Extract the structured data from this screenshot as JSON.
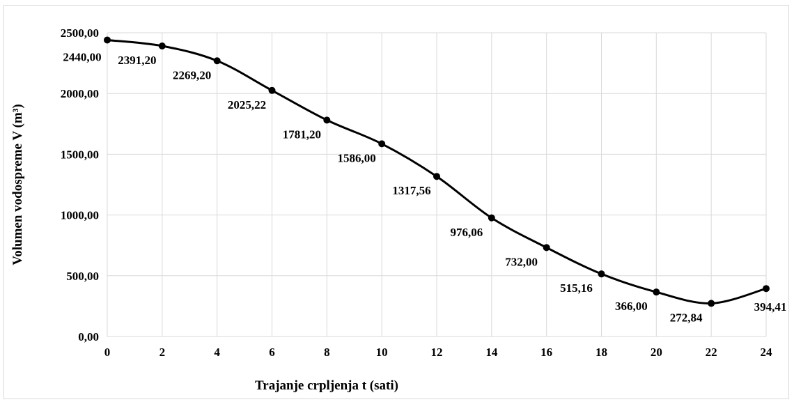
{
  "chart_data": {
    "type": "line",
    "xlabel": "Trajanje crpljenja t (sati)",
    "ylabel": "Volumen vodospreme V (m³)",
    "x": [
      0,
      2,
      4,
      6,
      8,
      10,
      12,
      14,
      16,
      18,
      20,
      22,
      24
    ],
    "series": [
      {
        "values": [
          2440.0,
          2391.2,
          2269.2,
          2025.22,
          1781.2,
          1586.0,
          1317.56,
          976.06,
          732.0,
          515.16,
          366.0,
          272.84,
          394.41
        ],
        "labels": [
          "2440,00",
          "2391,20",
          "2269,20",
          "2025,22",
          "1781,20",
          "1586,00",
          "1317,56",
          "976,06",
          "732,00",
          "515,16",
          "366,00",
          "272,84",
          "394,41"
        ],
        "color": "#000000",
        "marker": "circle",
        "smooth": true
      }
    ],
    "xlim": [
      0,
      24
    ],
    "ylim": [
      0,
      2500
    ],
    "xticks": [
      "0",
      "2",
      "4",
      "6",
      "8",
      "10",
      "12",
      "14",
      "16",
      "18",
      "20",
      "22",
      "24"
    ],
    "yticks": [
      "0,00",
      "500,00",
      "1000,00",
      "1500,00",
      "2000,00",
      "2500,00"
    ],
    "grid": true,
    "legend": "none",
    "gridColor": "#d9d9d9",
    "lineColor": "#000000"
  }
}
